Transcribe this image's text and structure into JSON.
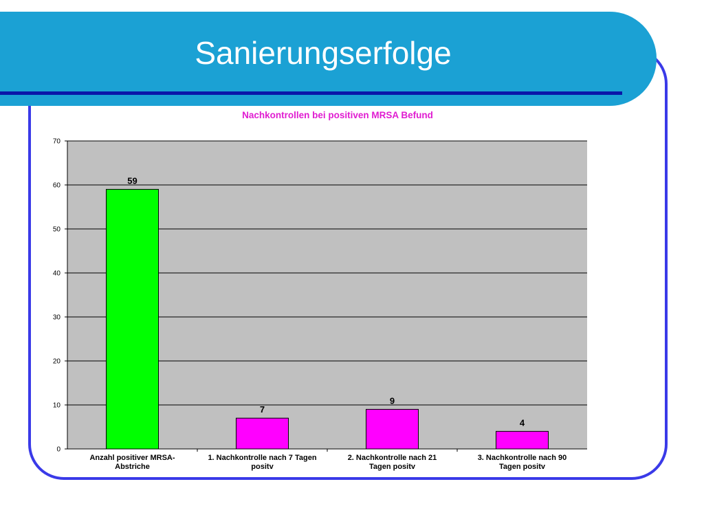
{
  "slide": {
    "title": "Sanierungserfolge",
    "colors": {
      "header": "#1ba1d4",
      "frame": "#3a3ae8",
      "header_line": "#0a16a8"
    }
  },
  "chart_data": {
    "type": "bar",
    "title": "Nachkontrollen bei positiven MRSA Befund",
    "categories": [
      [
        "Anzahl positiver MRSA-",
        "Abstriche"
      ],
      [
        "1. Nachkontrolle nach 7 Tagen",
        "positv"
      ],
      [
        "2. Nachkontrolle nach 21",
        "Tagen positv"
      ],
      [
        "3. Nachkontrolle nach 90",
        "Tagen positv"
      ]
    ],
    "values": [
      59,
      7,
      9,
      4
    ],
    "bar_colors": [
      "#00ff00",
      "#ff00ff",
      "#ff00ff",
      "#ff00ff"
    ],
    "data_labels": [
      "59",
      "7",
      "9",
      "4"
    ],
    "ylim": [
      0,
      70
    ],
    "yticks": [
      0,
      10,
      20,
      30,
      40,
      50,
      60,
      70
    ],
    "xlabel": "",
    "ylabel": "",
    "grid": true,
    "plot_background": "#c0c0c0",
    "title_color": "#e01cd1"
  }
}
